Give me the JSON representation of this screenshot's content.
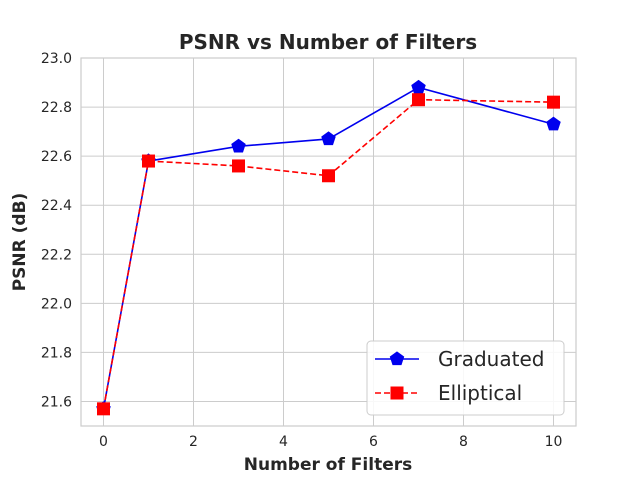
{
  "chart_data": {
    "type": "line",
    "title": "PSNR vs Number of Filters",
    "xlabel": "Number of Filters",
    "ylabel": "PSNR (dB)",
    "xlim": [
      -0.5,
      10.5
    ],
    "ylim": [
      21.5,
      23.0
    ],
    "xticks": [
      0,
      2,
      4,
      6,
      8,
      10
    ],
    "xtick_labels": [
      "0",
      "2",
      "4",
      "6",
      "8",
      "10"
    ],
    "yticks": [
      21.6,
      21.8,
      22.0,
      22.2,
      22.4,
      22.6,
      22.8,
      23.0
    ],
    "ytick_labels": [
      "21.6",
      "21.8",
      "22.0",
      "22.2",
      "22.4",
      "22.6",
      "22.8",
      "23.0"
    ],
    "grid": true,
    "legend_position": "lower-right",
    "series": [
      {
        "name": "Graduated",
        "color": "#0000ee",
        "line_style": "solid",
        "marker": "pentagon",
        "x": [
          0,
          1,
          3,
          5,
          7,
          10
        ],
        "y": [
          21.57,
          22.58,
          22.64,
          22.67,
          22.88,
          22.73
        ]
      },
      {
        "name": "Elliptical",
        "color": "#ff0000",
        "line_style": "dashed",
        "marker": "square",
        "x": [
          0,
          1,
          3,
          5,
          7,
          10
        ],
        "y": [
          21.57,
          22.58,
          22.56,
          22.52,
          22.83,
          22.82
        ]
      }
    ]
  }
}
